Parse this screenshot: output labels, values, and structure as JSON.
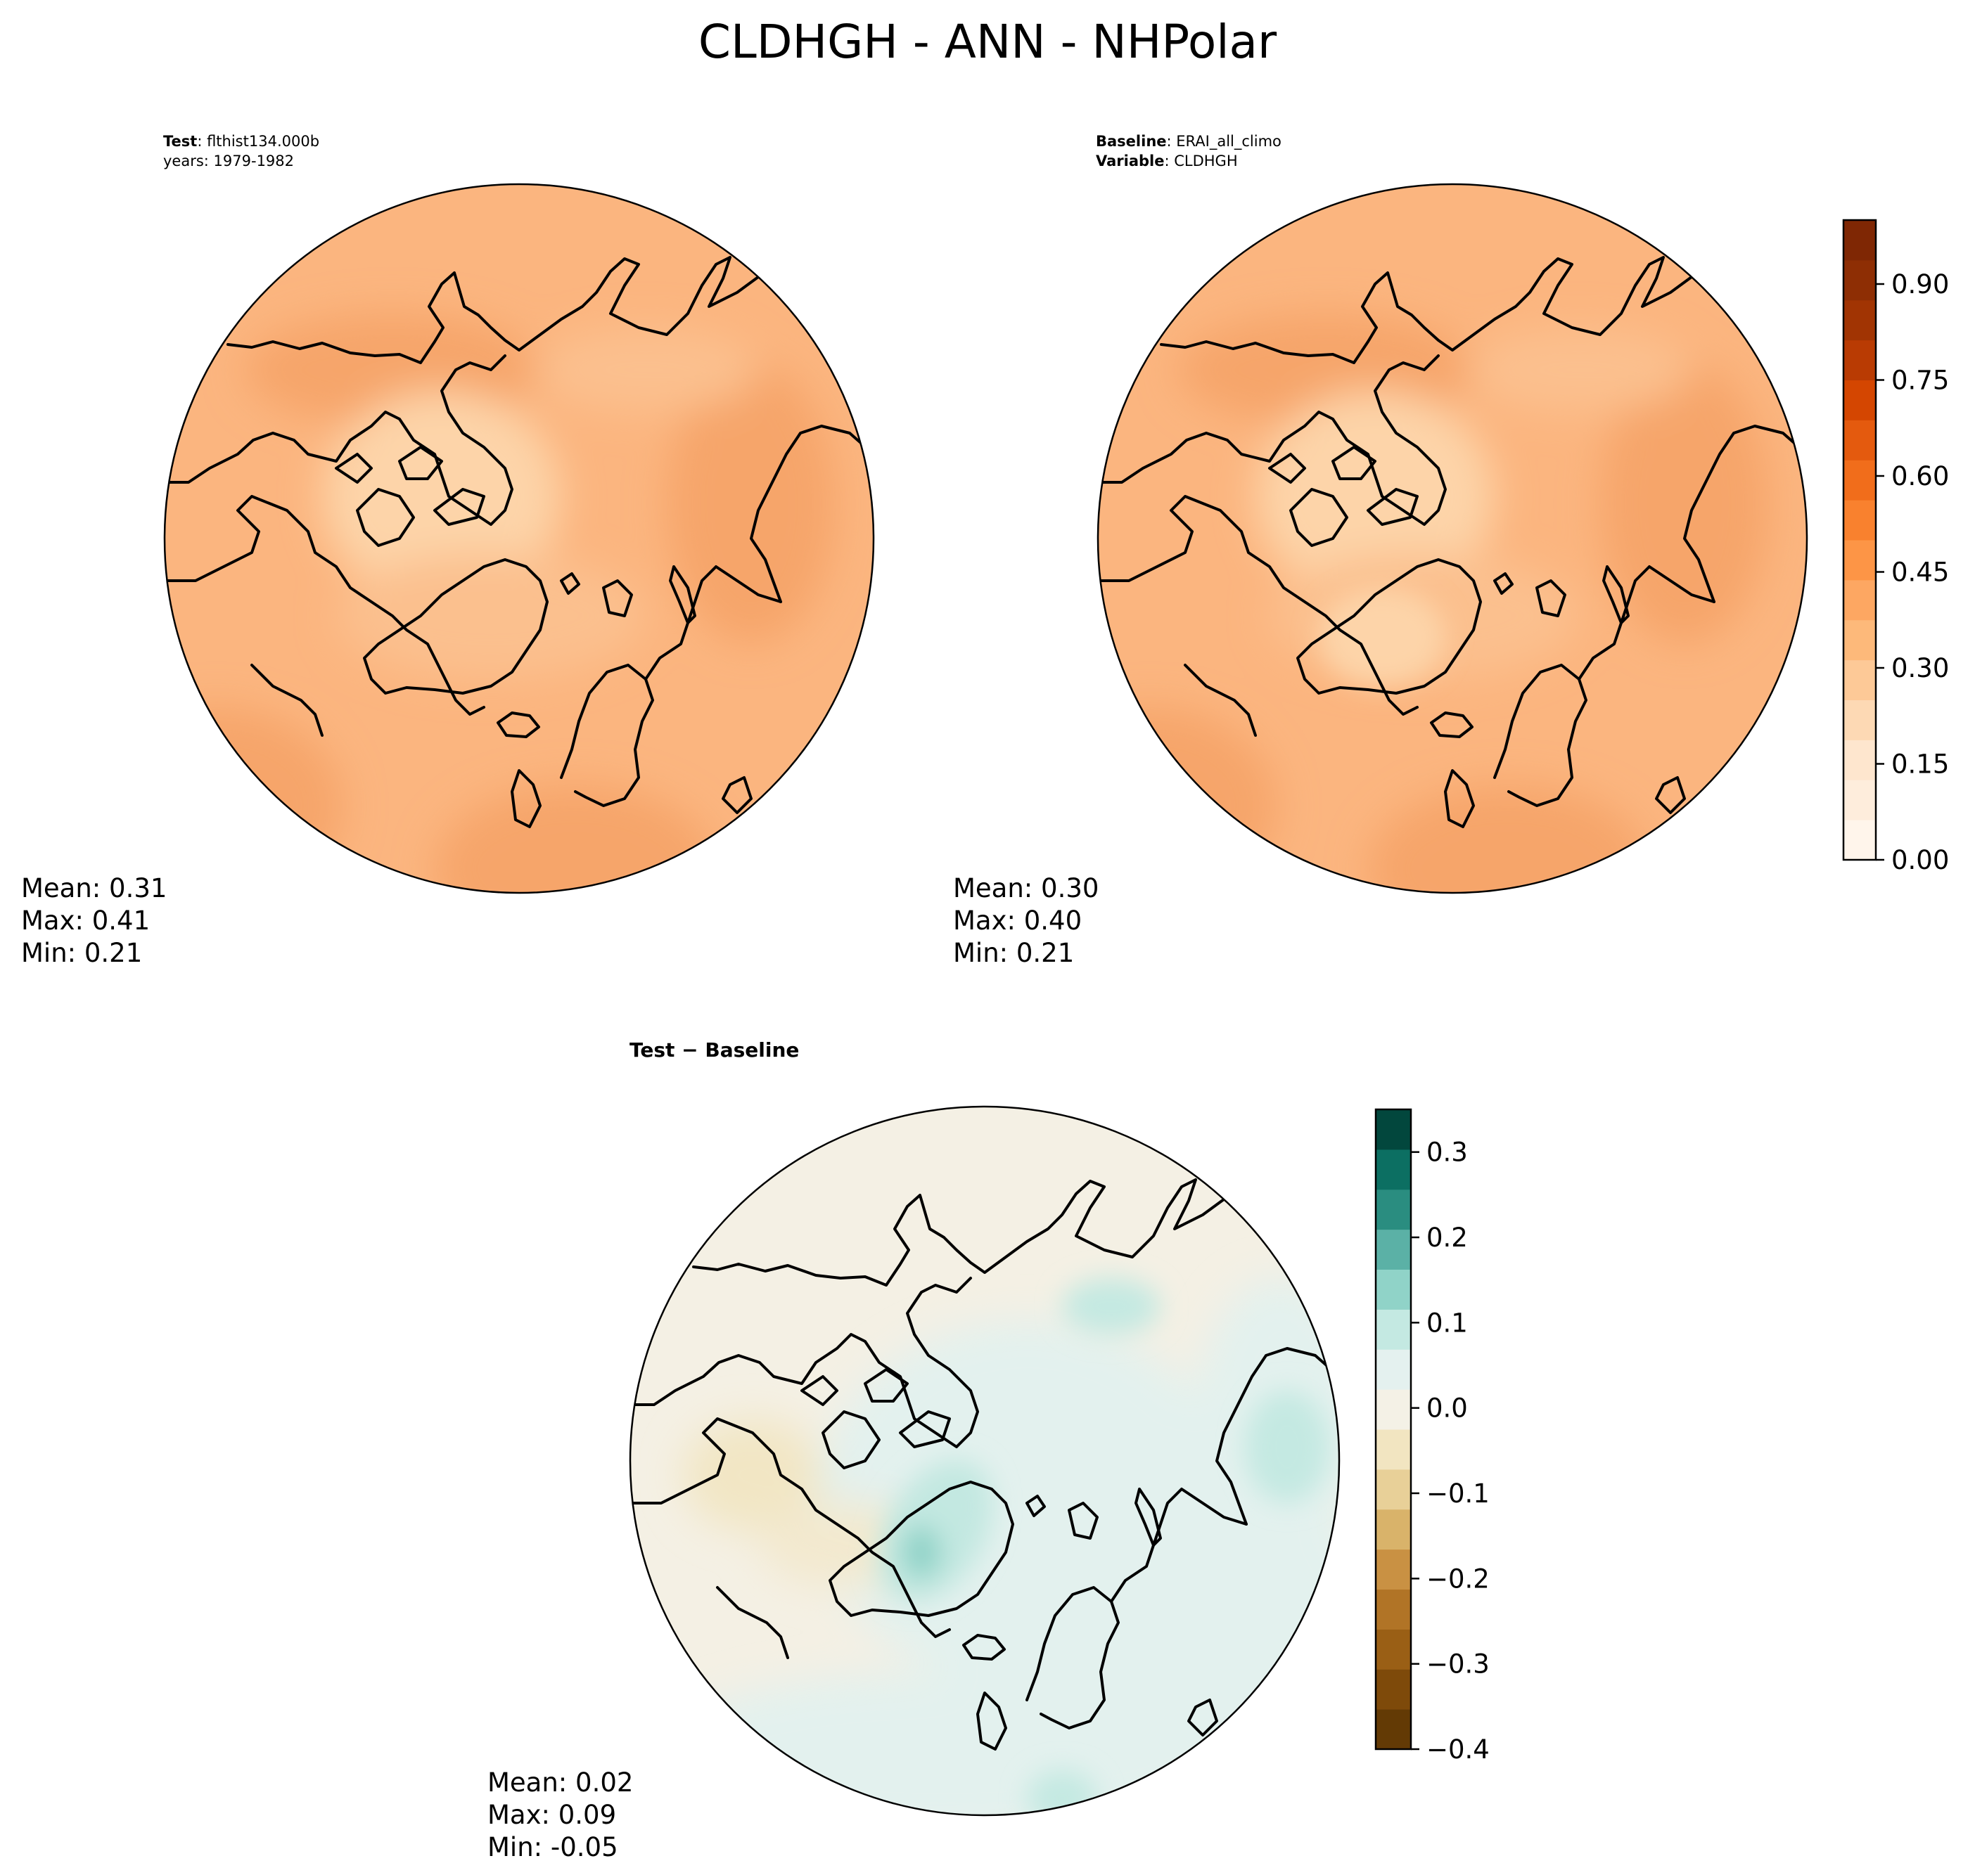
{
  "figure": {
    "title": "CLDHGH - ANN - NHPolar"
  },
  "panels": {
    "test": {
      "label_bold": "Test",
      "label_text": ": flthist134.000b",
      "years": "years: 1979-1982",
      "stats": {
        "mean": "Mean:  0.31",
        "max": "Max:  0.41",
        "min": "Min:  0.21"
      }
    },
    "baseline": {
      "label_bold": "Baseline",
      "label_text": ": ERAI_all_climo",
      "variable_bold": "Variable",
      "variable_text": ": CLDHGH",
      "stats": {
        "mean": "Mean:  0.30",
        "max": "Max:  0.40",
        "min": "Min:  0.21"
      }
    },
    "diff": {
      "title": "Test − Baseline",
      "stats": {
        "mean": "Mean:  0.02",
        "max": "Max:  0.09",
        "min": "Min: -0.05"
      }
    }
  },
  "colorbars": {
    "main": {
      "ticks": [
        "0.00",
        "0.15",
        "0.30",
        "0.45",
        "0.60",
        "0.75",
        "0.90"
      ],
      "tick_values": [
        0,
        0.15,
        0.3,
        0.45,
        0.6,
        0.75,
        0.9
      ],
      "range": [
        0,
        1.0
      ],
      "colors": [
        "#fff5eb",
        "#feeddc",
        "#fee6ce",
        "#fdd9b4",
        "#fdc997",
        "#fdb97a",
        "#fda762",
        "#fd9546",
        "#f9812e",
        "#f16d1b",
        "#e45a0e",
        "#d44601",
        "#b93b03",
        "#a13403",
        "#8e2e04",
        "#7f2704"
      ]
    },
    "diff": {
      "ticks": [
        "0.3",
        "0.2",
        "0.1",
        "0.0",
        "−0.1",
        "−0.2",
        "−0.3",
        "−0.4"
      ],
      "tick_values": [
        0.3,
        0.2,
        0.1,
        0.0,
        -0.1,
        -0.2,
        -0.3,
        -0.4
      ],
      "range": [
        -0.4,
        0.35
      ],
      "colors": [
        "#633a05",
        "#7e4a0a",
        "#9a5f15",
        "#b17426",
        "#c99143",
        "#d9b36a",
        "#e8d098",
        "#f2e5c1",
        "#f4f1e6",
        "#e4f1ef",
        "#c4e9e2",
        "#90d3c8",
        "#5bb1a6",
        "#2a8d80",
        "#0c6f62",
        "#02473d"
      ]
    }
  }
}
